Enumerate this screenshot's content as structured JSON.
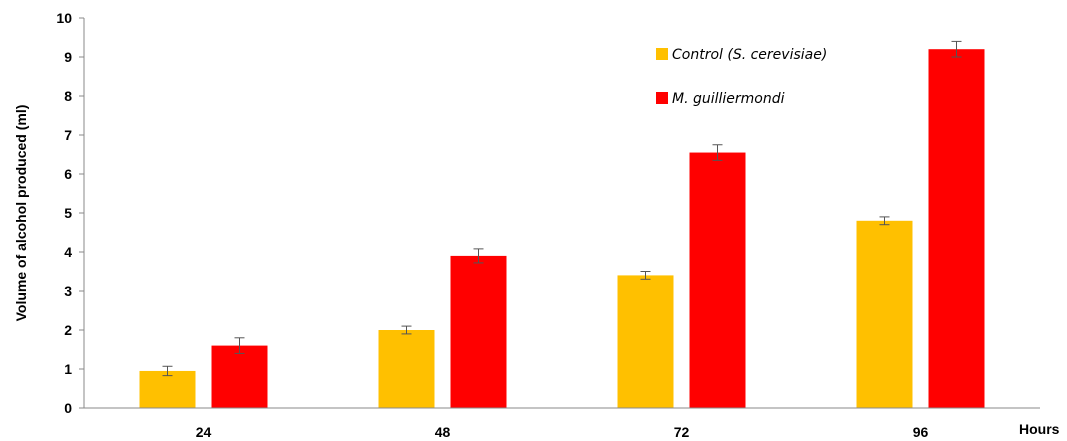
{
  "chart_data": {
    "type": "bar",
    "categories": [
      "24",
      "48",
      "72",
      "96"
    ],
    "series": [
      {
        "name": "Control (S. cerevisiae)",
        "color": "#FFC000",
        "values": [
          0.95,
          2.0,
          3.4,
          4.8
        ],
        "errors": [
          0.12,
          0.1,
          0.1,
          0.1
        ]
      },
      {
        "name": "M. guilliermondi",
        "color": "#FF0000",
        "values": [
          1.6,
          3.9,
          6.55,
          9.2
        ],
        "errors": [
          0.2,
          0.18,
          0.2,
          0.2
        ]
      }
    ],
    "xlabel": "Hours",
    "ylabel": "Volume of alcohol produced (ml)",
    "ylim": [
      0,
      10
    ],
    "yticks": [
      "0",
      "1",
      "2",
      "3",
      "4",
      "5",
      "6",
      "7",
      "8",
      "9",
      "10"
    ],
    "grid": false,
    "legend_position": "top-right"
  }
}
